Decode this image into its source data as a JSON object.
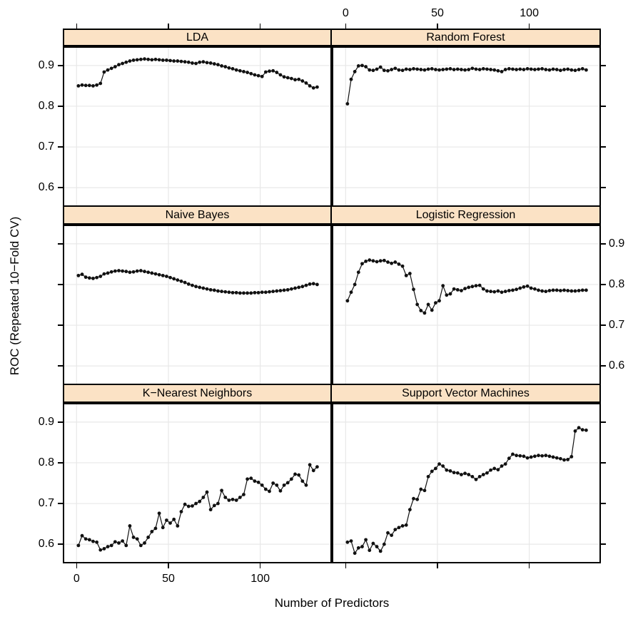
{
  "figure": {
    "x_label": "Number of Predictors",
    "y_label": "ROC (Repeated 10−Fold CV)"
  },
  "style": {
    "strip_fill": "#FBE2C5",
    "point_color": "#111111",
    "grid_color": "#E8E8E8",
    "border_color": "#000000"
  },
  "chart_data": {
    "type": "line",
    "layout": "lattice-trellis 3 rows x 2 columns, points with connecting lines",
    "x_label": "Number of Predictors",
    "y_label": "ROC (Repeated 10−Fold CV)",
    "x_ticks": [
      0,
      50,
      100
    ],
    "x_tick_labels": [
      "0",
      "50",
      "100"
    ],
    "y_ticks": [
      0.6,
      0.7,
      0.8,
      0.9
    ],
    "y_tick_labels": [
      "0.6",
      "0.7",
      "0.8",
      "0.9"
    ],
    "xlim": [
      -7.5,
      139
    ],
    "ylim": [
      0.553,
      0.947
    ],
    "x_values": [
      1,
      3,
      5,
      7,
      9,
      11,
      13,
      15,
      17,
      19,
      21,
      23,
      25,
      27,
      29,
      31,
      33,
      35,
      37,
      39,
      41,
      43,
      45,
      47,
      49,
      51,
      53,
      55,
      57,
      59,
      61,
      63,
      65,
      67,
      69,
      71,
      73,
      75,
      77,
      79,
      81,
      83,
      85,
      87,
      89,
      91,
      93,
      95,
      97,
      99,
      101,
      103,
      105,
      107,
      109,
      111,
      113,
      115,
      117,
      119,
      121,
      123,
      125,
      127,
      129,
      131
    ],
    "panels": [
      {
        "title": "LDA",
        "grid_pos": "top-left",
        "roc": [
          0.85,
          0.852,
          0.851,
          0.851,
          0.85,
          0.852,
          0.856,
          0.884,
          0.889,
          0.893,
          0.897,
          0.902,
          0.905,
          0.908,
          0.911,
          0.913,
          0.914,
          0.915,
          0.916,
          0.915,
          0.914,
          0.915,
          0.914,
          0.913,
          0.913,
          0.912,
          0.911,
          0.911,
          0.91,
          0.909,
          0.908,
          0.906,
          0.905,
          0.908,
          0.909,
          0.907,
          0.906,
          0.904,
          0.902,
          0.899,
          0.897,
          0.894,
          0.892,
          0.889,
          0.887,
          0.885,
          0.883,
          0.88,
          0.877,
          0.875,
          0.873,
          0.884,
          0.886,
          0.887,
          0.883,
          0.877,
          0.872,
          0.87,
          0.868,
          0.865,
          0.866,
          0.862,
          0.857,
          0.85,
          0.845,
          0.847
        ]
      },
      {
        "title": "Random Forest",
        "grid_pos": "top-right",
        "roc": [
          0.806,
          0.866,
          0.885,
          0.899,
          0.9,
          0.897,
          0.889,
          0.888,
          0.891,
          0.896,
          0.888,
          0.887,
          0.89,
          0.893,
          0.889,
          0.888,
          0.891,
          0.89,
          0.892,
          0.891,
          0.89,
          0.889,
          0.891,
          0.892,
          0.89,
          0.889,
          0.89,
          0.891,
          0.892,
          0.89,
          0.891,
          0.89,
          0.889,
          0.89,
          0.893,
          0.891,
          0.89,
          0.892,
          0.891,
          0.89,
          0.889,
          0.887,
          0.885,
          0.89,
          0.892,
          0.891,
          0.89,
          0.891,
          0.89,
          0.892,
          0.891,
          0.89,
          0.891,
          0.892,
          0.89,
          0.889,
          0.891,
          0.89,
          0.888,
          0.89,
          0.891,
          0.889,
          0.888,
          0.89,
          0.892,
          0.889
        ]
      },
      {
        "title": "Naive Bayes",
        "grid_pos": "middle-left",
        "roc": [
          0.822,
          0.825,
          0.818,
          0.816,
          0.815,
          0.817,
          0.82,
          0.826,
          0.828,
          0.831,
          0.833,
          0.834,
          0.833,
          0.832,
          0.83,
          0.831,
          0.833,
          0.834,
          0.832,
          0.83,
          0.828,
          0.826,
          0.824,
          0.822,
          0.82,
          0.817,
          0.814,
          0.811,
          0.808,
          0.805,
          0.801,
          0.798,
          0.795,
          0.793,
          0.791,
          0.789,
          0.787,
          0.786,
          0.784,
          0.783,
          0.782,
          0.781,
          0.78,
          0.78,
          0.779,
          0.779,
          0.779,
          0.779,
          0.78,
          0.78,
          0.781,
          0.781,
          0.782,
          0.783,
          0.784,
          0.785,
          0.786,
          0.787,
          0.789,
          0.791,
          0.793,
          0.795,
          0.798,
          0.801,
          0.802,
          0.8
        ]
      },
      {
        "title": "Logistic Regression",
        "grid_pos": "middle-right",
        "roc": [
          0.76,
          0.781,
          0.8,
          0.83,
          0.851,
          0.857,
          0.86,
          0.858,
          0.856,
          0.858,
          0.859,
          0.855,
          0.852,
          0.855,
          0.85,
          0.845,
          0.822,
          0.827,
          0.788,
          0.751,
          0.736,
          0.73,
          0.751,
          0.737,
          0.755,
          0.76,
          0.797,
          0.774,
          0.777,
          0.789,
          0.787,
          0.785,
          0.79,
          0.793,
          0.795,
          0.797,
          0.798,
          0.789,
          0.784,
          0.783,
          0.782,
          0.784,
          0.781,
          0.783,
          0.785,
          0.786,
          0.788,
          0.791,
          0.794,
          0.796,
          0.791,
          0.789,
          0.786,
          0.784,
          0.783,
          0.785,
          0.786,
          0.786,
          0.785,
          0.786,
          0.785,
          0.784,
          0.784,
          0.785,
          0.786,
          0.786
        ]
      },
      {
        "title": "K−Nearest Neighbors",
        "grid_pos": "bottom-left",
        "roc": [
          0.597,
          0.621,
          0.613,
          0.611,
          0.607,
          0.605,
          0.586,
          0.589,
          0.594,
          0.597,
          0.606,
          0.603,
          0.608,
          0.597,
          0.645,
          0.617,
          0.613,
          0.597,
          0.603,
          0.617,
          0.631,
          0.639,
          0.676,
          0.641,
          0.659,
          0.652,
          0.661,
          0.645,
          0.68,
          0.698,
          0.693,
          0.694,
          0.7,
          0.705,
          0.715,
          0.728,
          0.685,
          0.695,
          0.7,
          0.732,
          0.715,
          0.708,
          0.71,
          0.708,
          0.715,
          0.722,
          0.76,
          0.762,
          0.755,
          0.752,
          0.745,
          0.735,
          0.73,
          0.75,
          0.745,
          0.731,
          0.745,
          0.751,
          0.76,
          0.772,
          0.77,
          0.755,
          0.745,
          0.795,
          0.781,
          0.79
        ]
      },
      {
        "title": "Support Vector Machines",
        "grid_pos": "bottom-right",
        "roc": [
          0.605,
          0.608,
          0.578,
          0.591,
          0.594,
          0.611,
          0.585,
          0.602,
          0.594,
          0.583,
          0.6,
          0.628,
          0.622,
          0.636,
          0.641,
          0.645,
          0.647,
          0.685,
          0.712,
          0.71,
          0.735,
          0.732,
          0.766,
          0.779,
          0.786,
          0.797,
          0.792,
          0.782,
          0.78,
          0.776,
          0.775,
          0.771,
          0.774,
          0.771,
          0.766,
          0.759,
          0.766,
          0.771,
          0.775,
          0.782,
          0.786,
          0.783,
          0.792,
          0.797,
          0.811,
          0.821,
          0.818,
          0.817,
          0.816,
          0.812,
          0.814,
          0.816,
          0.818,
          0.817,
          0.818,
          0.816,
          0.814,
          0.812,
          0.81,
          0.807,
          0.808,
          0.815,
          0.878,
          0.886,
          0.881,
          0.88
        ]
      }
    ]
  }
}
